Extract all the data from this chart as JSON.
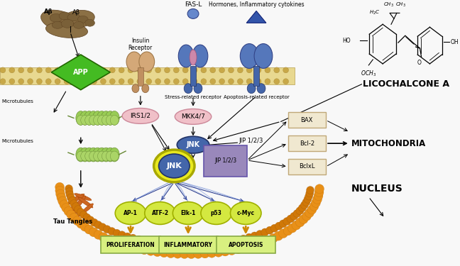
{
  "bg_color": "#f0f0f0",
  "app_label": "APP",
  "insulin_receptor_label": "Insulin\nReceptor",
  "irs_label": "IRS1/2",
  "fas_label": "FAS-L",
  "stress_receptor_label": "Stress-related receptor",
  "apoptosis_receptor_label": "Apoptosis-related receptor",
  "hormones_label": "Hormones, Inflammatory cytokines",
  "mkk_label": "MKK4/7",
  "jnk_small_label": "JNK",
  "jnk_big_label": "JNK",
  "jip_label": "JIP 1/2/3",
  "jip2_label": "JIP 1/2/3",
  "bax_label": "BAX",
  "bcl2_label": "Bcl-2",
  "bclxl_label": "BclxL",
  "mitochondria_label": "MITOCHONDRIA",
  "nucleus_label": "NUCLEUS",
  "transcription_factors": [
    "AP-1",
    "ATF-2",
    "Elk-1",
    "p53",
    "c-Myc"
  ],
  "output_labels": [
    "PROLIFERATION",
    "INFLAMMATORY",
    "APOPTOSIS"
  ],
  "microtubules_label": "Microtubules",
  "tau_label": "Tau Tangles",
  "licochalcone_label": "LICOCHALCONE A",
  "ab_label": "Aβ",
  "yellow_circle_color": "#d4e840",
  "yellow_circle_edge": "#a0b000",
  "green_box_color": "#d8f080",
  "green_box_edge": "#88aa44",
  "pink_circle_color": "#f0c0c8",
  "pink_circle_edge": "#cc8899",
  "blue_circle_color": "#4466aa",
  "blue_circle_edge": "#223366",
  "purple_rect_color": "#9988bb",
  "purple_rect_edge": "#6655aa",
  "tan_box_color": "#f0e8d0",
  "tan_box_edge": "#c0a878"
}
